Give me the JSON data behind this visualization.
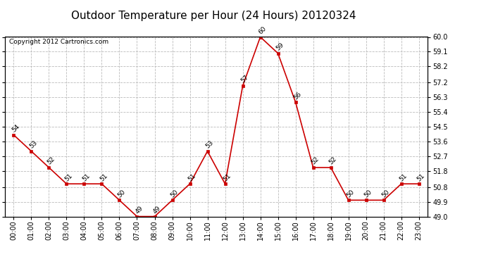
{
  "title": "Outdoor Temperature per Hour (24 Hours) 20120324",
  "copyright": "Copyright 2012 Cartronics.com",
  "hours": [
    "00:00",
    "01:00",
    "02:00",
    "03:00",
    "04:00",
    "05:00",
    "06:00",
    "07:00",
    "08:00",
    "09:00",
    "10:00",
    "11:00",
    "12:00",
    "13:00",
    "14:00",
    "15:00",
    "16:00",
    "17:00",
    "18:00",
    "19:00",
    "20:00",
    "21:00",
    "22:00",
    "23:00"
  ],
  "temps": [
    54,
    53,
    52,
    51,
    51,
    51,
    50,
    49,
    49,
    50,
    51,
    53,
    51,
    57,
    60,
    59,
    56,
    52,
    52,
    50,
    50,
    50,
    51,
    51
  ],
  "ylim": [
    49.0,
    60.0
  ],
  "yticks": [
    49.0,
    49.9,
    50.8,
    51.8,
    52.7,
    53.6,
    54.5,
    55.4,
    56.3,
    57.2,
    58.2,
    59.1,
    60.0
  ],
  "line_color": "#cc0000",
  "marker_color": "#cc0000",
  "grid_color": "#bbbbbb",
  "background_color": "#ffffff",
  "title_fontsize": 11,
  "label_fontsize": 7,
  "annotation_fontsize": 6.5,
  "copyright_fontsize": 6.5
}
